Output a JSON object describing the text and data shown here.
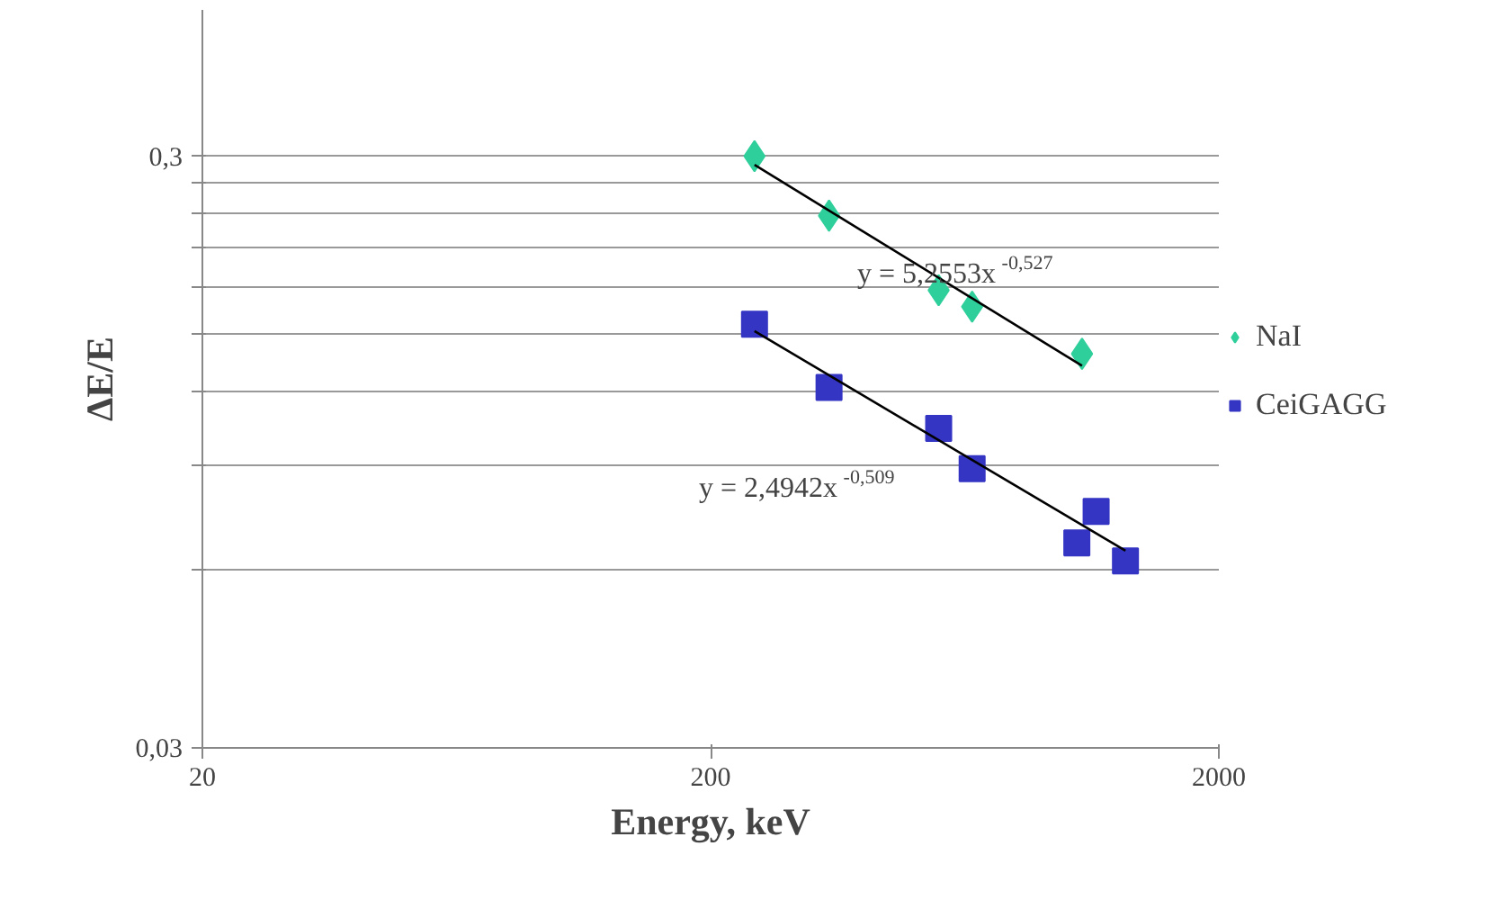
{
  "chart_data": {
    "type": "scatter",
    "xlabel": "Energy, keV",
    "ylabel": "ΔE/E",
    "log": "xy",
    "grid": "y",
    "legend": "right",
    "xlim": [
      20,
      2000
    ],
    "ylim": [
      0.03,
      0.53
    ],
    "xticks": [
      20,
      200,
      2000
    ],
    "yticks": [
      {
        "value": 0.03,
        "label": "0,03"
      },
      {
        "value": 0.06,
        "label": null
      },
      {
        "value": 0.09,
        "label": null
      },
      {
        "value": 0.12,
        "label": null
      },
      {
        "value": 0.15,
        "label": null
      },
      {
        "value": 0.18,
        "label": null
      },
      {
        "value": 0.21,
        "label": null
      },
      {
        "value": 0.24,
        "label": null
      },
      {
        "value": 0.27,
        "label": null
      },
      {
        "value": 0.3,
        "label": "0,3"
      }
    ],
    "series": [
      {
        "name": "NaI",
        "marker": "diamond",
        "color": "#2fcf9b",
        "x": [
          244,
          342,
          562,
          654,
          1076
        ],
        "values": [
          0.3,
          0.238,
          0.178,
          0.167,
          0.139
        ]
      },
      {
        "name": "CeiGAGG",
        "marker": "square",
        "color": "#3535c4",
        "x": [
          244,
          342,
          562,
          654,
          1051,
          1147,
          1310
        ],
        "values": [
          0.156,
          0.122,
          0.104,
          0.0889,
          0.0666,
          0.0753,
          0.0621
        ]
      },
      {
        "type": "line",
        "color": "#000000",
        "x": [
          244,
          1076
        ],
        "values": [
          0.29,
          0.1327
        ]
      },
      {
        "type": "line",
        "color": "#000000",
        "x": [
          244,
          1310
        ],
        "values": [
          0.1519,
          0.0646
        ]
      }
    ],
    "annotations": [
      "y = 5,2553x$^{-0,527}$",
      "y = 2,4942x$^{-0,509}$"
    ]
  }
}
